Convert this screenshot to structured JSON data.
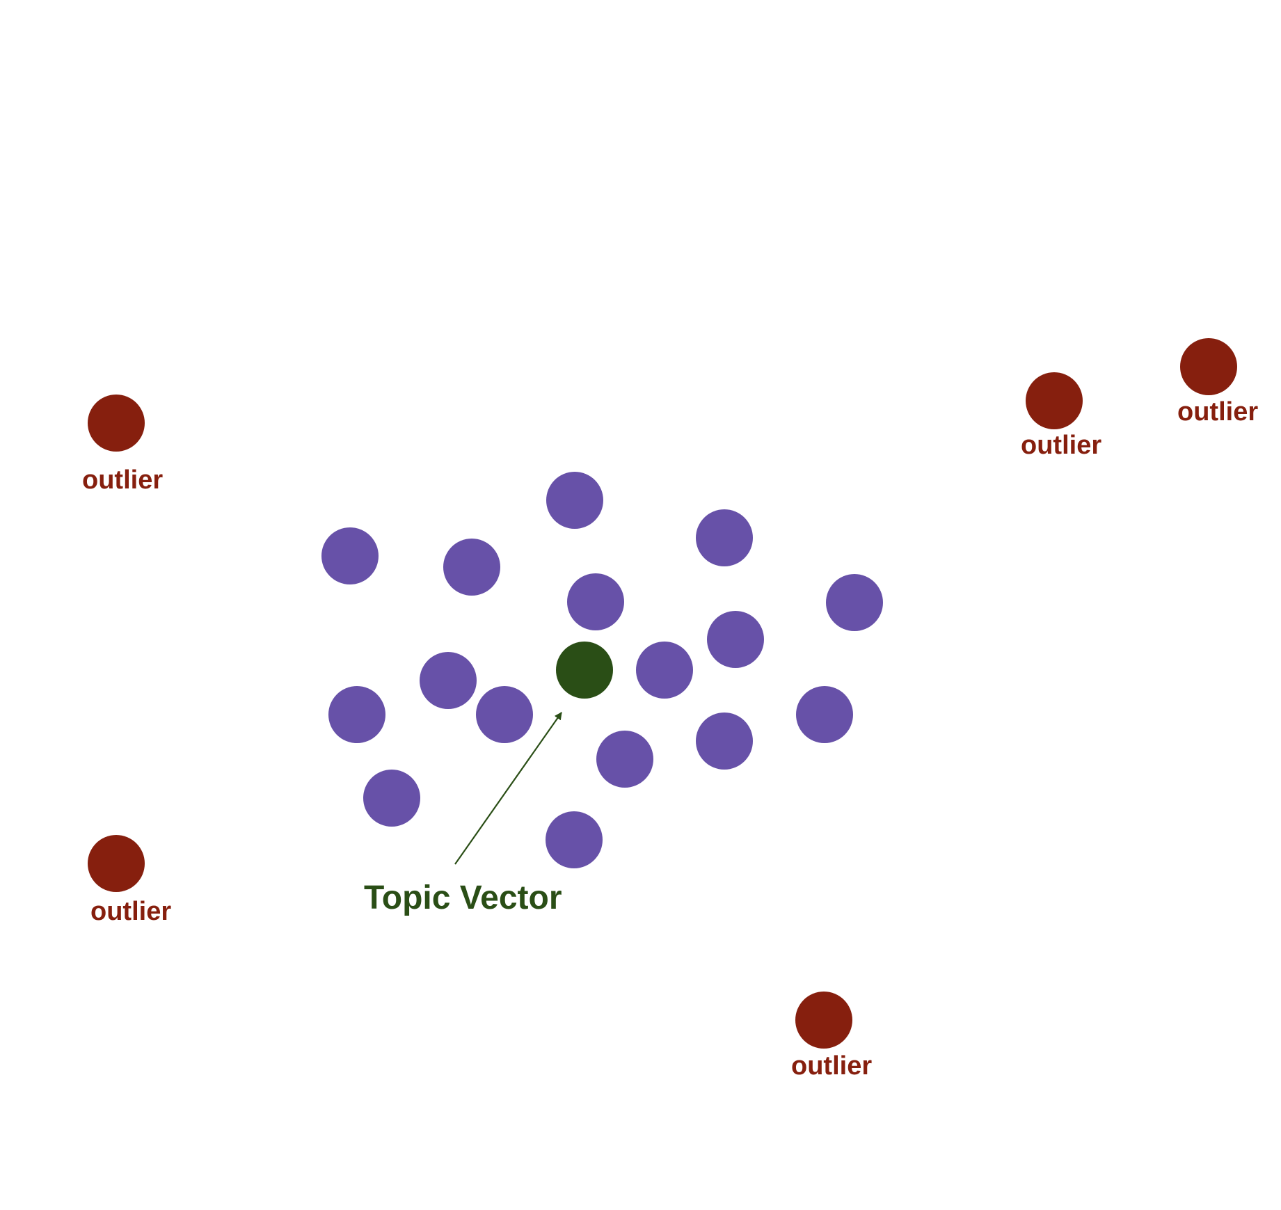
{
  "colors": {
    "background": "#ffffff",
    "cluster_point": "#6751a8",
    "topic_vector": "#2a4e16",
    "outlier": "#861f0e",
    "arrow": "#2a4e16"
  },
  "topic_vector": {
    "label": "Topic Vector"
  },
  "outliers": [
    {
      "label": "outlier"
    },
    {
      "label": "outlier"
    },
    {
      "label": "outlier"
    },
    {
      "label": "outlier"
    },
    {
      "label": "outlier"
    }
  ]
}
